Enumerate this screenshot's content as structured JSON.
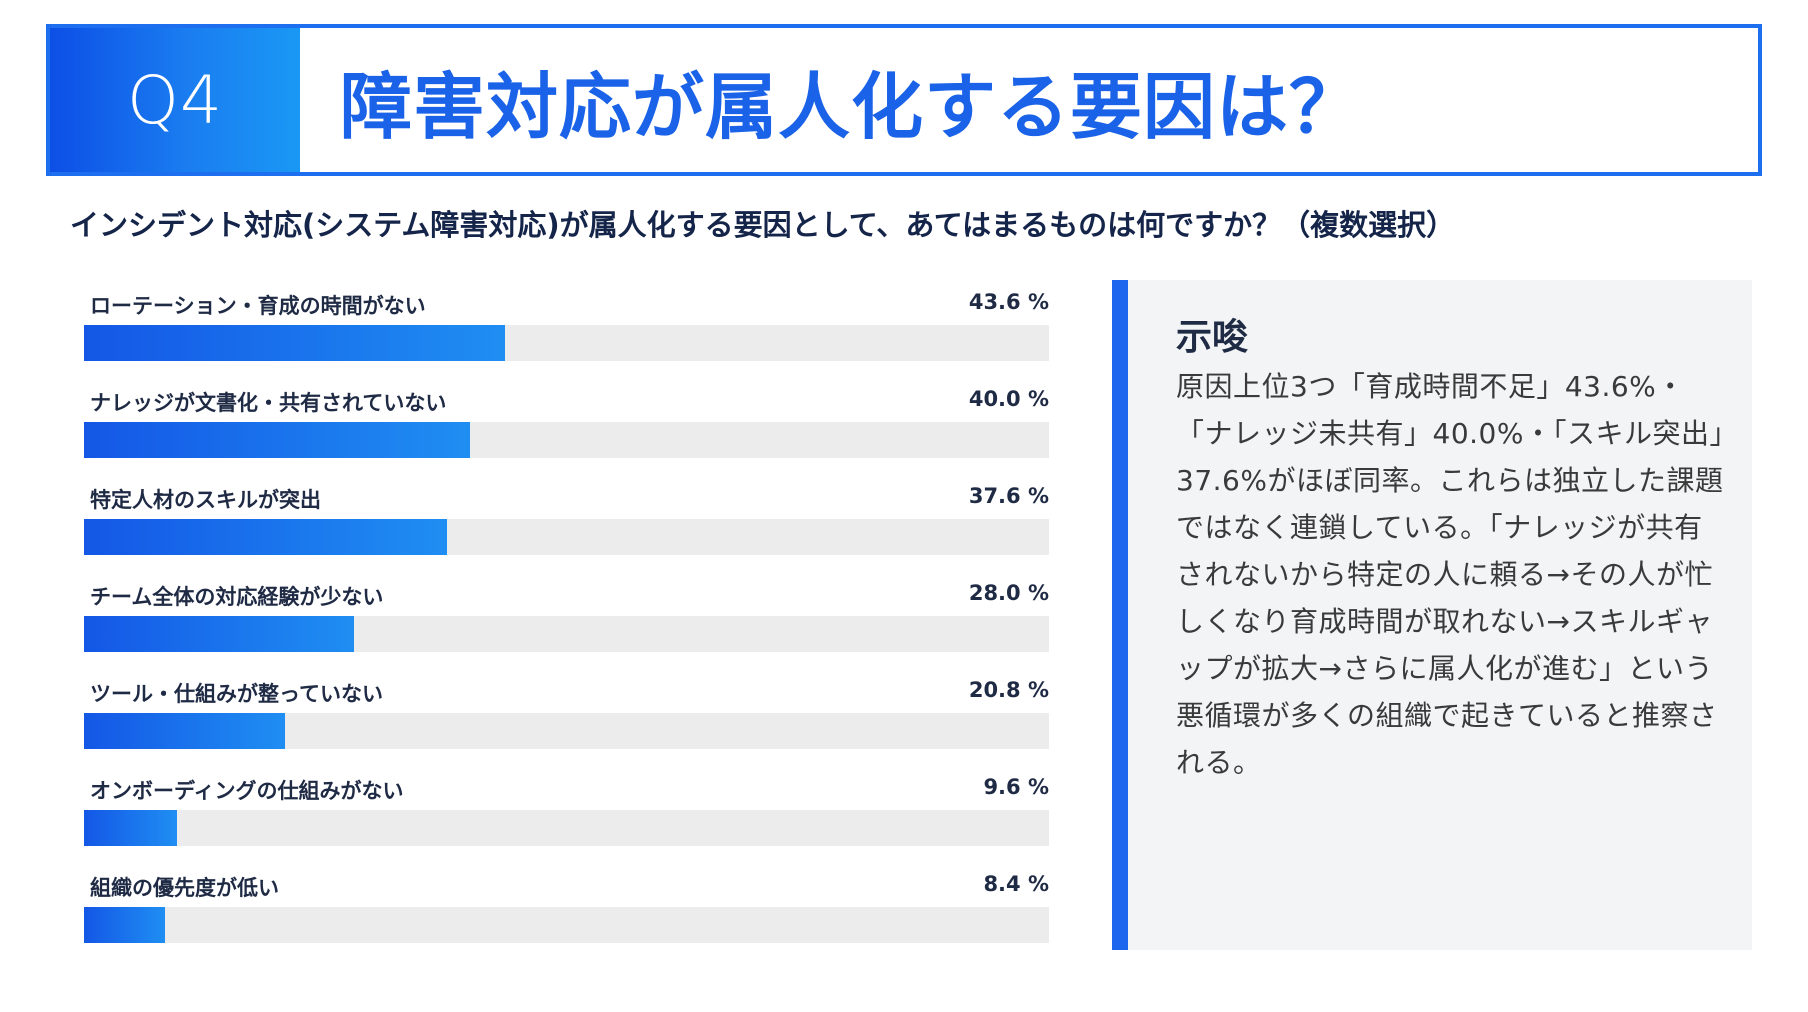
{
  "header": {
    "q_label": "Q4",
    "title": "障害対応が属人化する要因は？"
  },
  "question": "インシデント対応(システム障害対応)が属人化する要因として、あてはまるものは何ですか？（複数選択）",
  "chart_data": {
    "type": "bar",
    "orientation": "horizontal",
    "unit": "%",
    "xlim": [
      0,
      100
    ],
    "categories": [
      "ローテーション・育成の時間がない",
      "ナレッジが文書化・共有されていない",
      "特定人材のスキルが突出",
      "チーム全体の対応経験が少ない",
      "ツール・仕組みが整っていない",
      "オンボーディングの仕組みがない",
      "組織の優先度が低い"
    ],
    "values": [
      43.6,
      40.0,
      37.6,
      28.0,
      20.8,
      9.6,
      8.4
    ],
    "value_labels": [
      "43.6 %",
      "40.0 %",
      "37.6 %",
      "28.0 %",
      "20.8 %",
      "9.6 %",
      "8.4 %"
    ]
  },
  "insight": {
    "title": "示唆",
    "body": "原因上位3つ「育成時間不足」43.6%・「ナレッジ未共有」40.0%・「スキル突出」37.6%がほぼ同率。これらは独立した課題ではなく連鎖している。「ナレッジが共有されないから特定の人に頼る→その人が忙しくなり育成時間が取れない→スキルギャップが拡大→さらに属人化が進む」という悪循環が多くの組織で起きていると推察される。"
  },
  "colors": {
    "accent": "#1e6ef0",
    "bar_start": "#1457e6",
    "bar_end": "#1f8ef2",
    "track": "#ececec",
    "panel_bg": "#f3f4f6"
  }
}
